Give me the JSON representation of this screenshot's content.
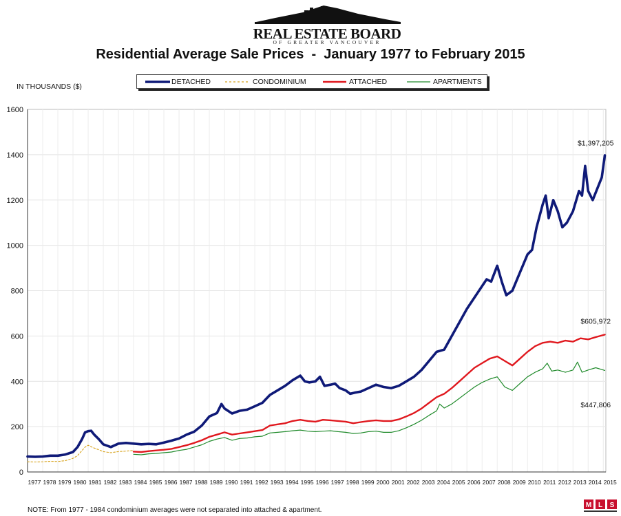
{
  "logo": {
    "main": "REAL ESTATE BOARD",
    "sub": "OF GREATER VANCOUVER"
  },
  "footnote": "NOTE:  From 1977 - 1984 condominium averages were not separated into attached & apartment.",
  "mls": {
    "glyphs": "MLS"
  },
  "chart_data": {
    "type": "line",
    "title": "Residential Average Sale Prices  -  January 1977 to February 2015",
    "ylabel": "IN THOUSANDS ($)",
    "xlabel": "",
    "ylim": [
      0,
      1600
    ],
    "yticks": [
      0,
      200,
      400,
      600,
      800,
      1000,
      1200,
      1400,
      1600
    ],
    "xlim": [
      1977,
      2015.17
    ],
    "xticks": [
      1977,
      1978,
      1979,
      1980,
      1981,
      1982,
      1983,
      1984,
      1985,
      1986,
      1987,
      1988,
      1989,
      1990,
      1991,
      1992,
      1993,
      1994,
      1995,
      1996,
      1997,
      1998,
      1999,
      2000,
      2001,
      2002,
      2003,
      2004,
      2005,
      2006,
      2007,
      2008,
      2009,
      2010,
      2011,
      2012,
      2013,
      2014,
      2015
    ],
    "grid": true,
    "legend_position": "top",
    "series": [
      {
        "name": "DETACHED",
        "color": "#0f1a78",
        "style": "thick",
        "points": [
          [
            1977.0,
            68
          ],
          [
            1977.5,
            67
          ],
          [
            1978.0,
            68
          ],
          [
            1978.5,
            72
          ],
          [
            1979.0,
            72
          ],
          [
            1979.5,
            77
          ],
          [
            1980.0,
            88
          ],
          [
            1980.3,
            110
          ],
          [
            1980.6,
            145
          ],
          [
            1980.8,
            175
          ],
          [
            1981.0,
            180
          ],
          [
            1981.2,
            182
          ],
          [
            1981.4,
            165
          ],
          [
            1981.7,
            145
          ],
          [
            1982.0,
            122
          ],
          [
            1982.5,
            110
          ],
          [
            1983.0,
            125
          ],
          [
            1983.5,
            128
          ],
          [
            1984.0,
            125
          ],
          [
            1984.5,
            122
          ],
          [
            1985.0,
            124
          ],
          [
            1985.5,
            122
          ],
          [
            1986.0,
            130
          ],
          [
            1986.5,
            138
          ],
          [
            1987.0,
            148
          ],
          [
            1987.5,
            165
          ],
          [
            1988.0,
            178
          ],
          [
            1988.5,
            205
          ],
          [
            1989.0,
            245
          ],
          [
            1989.5,
            260
          ],
          [
            1989.8,
            300
          ],
          [
            1990.0,
            280
          ],
          [
            1990.5,
            258
          ],
          [
            1991.0,
            270
          ],
          [
            1991.5,
            275
          ],
          [
            1992.0,
            290
          ],
          [
            1992.5,
            305
          ],
          [
            1993.0,
            340
          ],
          [
            1993.5,
            360
          ],
          [
            1994.0,
            380
          ],
          [
            1994.5,
            405
          ],
          [
            1995.0,
            425
          ],
          [
            1995.3,
            400
          ],
          [
            1995.6,
            395
          ],
          [
            1996.0,
            400
          ],
          [
            1996.3,
            420
          ],
          [
            1996.6,
            380
          ],
          [
            1997.0,
            385
          ],
          [
            1997.3,
            390
          ],
          [
            1997.6,
            370
          ],
          [
            1998.0,
            360
          ],
          [
            1998.3,
            345
          ],
          [
            1998.6,
            350
          ],
          [
            1999.0,
            355
          ],
          [
            1999.5,
            370
          ],
          [
            2000.0,
            385
          ],
          [
            2000.5,
            375
          ],
          [
            2001.0,
            370
          ],
          [
            2001.5,
            380
          ],
          [
            2002.0,
            400
          ],
          [
            2002.5,
            420
          ],
          [
            2003.0,
            450
          ],
          [
            2003.5,
            490
          ],
          [
            2004.0,
            530
          ],
          [
            2004.5,
            540
          ],
          [
            2005.0,
            600
          ],
          [
            2005.5,
            660
          ],
          [
            2006.0,
            720
          ],
          [
            2006.5,
            770
          ],
          [
            2007.0,
            820
          ],
          [
            2007.3,
            850
          ],
          [
            2007.6,
            840
          ],
          [
            2008.0,
            910
          ],
          [
            2008.3,
            840
          ],
          [
            2008.6,
            780
          ],
          [
            2009.0,
            800
          ],
          [
            2009.5,
            880
          ],
          [
            2010.0,
            960
          ],
          [
            2010.3,
            980
          ],
          [
            2010.6,
            1080
          ],
          [
            2011.0,
            1180
          ],
          [
            2011.2,
            1220
          ],
          [
            2011.4,
            1120
          ],
          [
            2011.7,
            1200
          ],
          [
            2012.0,
            1150
          ],
          [
            2012.3,
            1080
          ],
          [
            2012.6,
            1100
          ],
          [
            2013.0,
            1150
          ],
          [
            2013.4,
            1240
          ],
          [
            2013.6,
            1220
          ],
          [
            2013.8,
            1350
          ],
          [
            2014.0,
            1240
          ],
          [
            2014.3,
            1200
          ],
          [
            2014.6,
            1250
          ],
          [
            2014.9,
            1300
          ],
          [
            2015.1,
            1397
          ]
        ]
      },
      {
        "name": "CONDOMINIUM",
        "color": "#d7a21a",
        "style": "dashed",
        "points": [
          [
            1977.0,
            45
          ],
          [
            1977.5,
            44
          ],
          [
            1978.0,
            45
          ],
          [
            1978.5,
            47
          ],
          [
            1979.0,
            46
          ],
          [
            1979.5,
            50
          ],
          [
            1980.0,
            60
          ],
          [
            1980.3,
            72
          ],
          [
            1980.6,
            95
          ],
          [
            1980.8,
            110
          ],
          [
            1981.0,
            118
          ],
          [
            1981.3,
            108
          ],
          [
            1981.7,
            98
          ],
          [
            1982.0,
            90
          ],
          [
            1982.5,
            85
          ],
          [
            1983.0,
            90
          ],
          [
            1983.5,
            92
          ],
          [
            1984.0,
            95
          ]
        ]
      },
      {
        "name": "ATTACHED",
        "color": "#e0181e",
        "style": "medium",
        "points": [
          [
            1984.0,
            90
          ],
          [
            1984.5,
            88
          ],
          [
            1985.0,
            92
          ],
          [
            1985.5,
            95
          ],
          [
            1986.0,
            98
          ],
          [
            1986.5,
            102
          ],
          [
            1987.0,
            110
          ],
          [
            1987.5,
            118
          ],
          [
            1988.0,
            128
          ],
          [
            1988.5,
            140
          ],
          [
            1989.0,
            155
          ],
          [
            1989.5,
            165
          ],
          [
            1990.0,
            175
          ],
          [
            1990.5,
            165
          ],
          [
            1991.0,
            170
          ],
          [
            1991.5,
            175
          ],
          [
            1992.0,
            180
          ],
          [
            1992.5,
            185
          ],
          [
            1993.0,
            205
          ],
          [
            1993.5,
            210
          ],
          [
            1994.0,
            215
          ],
          [
            1994.5,
            225
          ],
          [
            1995.0,
            230
          ],
          [
            1995.5,
            225
          ],
          [
            1996.0,
            222
          ],
          [
            1996.5,
            230
          ],
          [
            1997.0,
            228
          ],
          [
            1997.5,
            225
          ],
          [
            1998.0,
            222
          ],
          [
            1998.5,
            215
          ],
          [
            1999.0,
            220
          ],
          [
            1999.5,
            225
          ],
          [
            2000.0,
            228
          ],
          [
            2000.5,
            225
          ],
          [
            2001.0,
            225
          ],
          [
            2001.5,
            232
          ],
          [
            2002.0,
            245
          ],
          [
            2002.5,
            260
          ],
          [
            2003.0,
            280
          ],
          [
            2003.5,
            305
          ],
          [
            2004.0,
            330
          ],
          [
            2004.5,
            345
          ],
          [
            2005.0,
            370
          ],
          [
            2005.5,
            400
          ],
          [
            2006.0,
            430
          ],
          [
            2006.5,
            460
          ],
          [
            2007.0,
            480
          ],
          [
            2007.5,
            500
          ],
          [
            2008.0,
            510
          ],
          [
            2008.5,
            490
          ],
          [
            2009.0,
            470
          ],
          [
            2009.5,
            500
          ],
          [
            2010.0,
            530
          ],
          [
            2010.5,
            555
          ],
          [
            2011.0,
            570
          ],
          [
            2011.5,
            575
          ],
          [
            2012.0,
            570
          ],
          [
            2012.5,
            580
          ],
          [
            2013.0,
            575
          ],
          [
            2013.5,
            590
          ],
          [
            2014.0,
            585
          ],
          [
            2014.5,
            595
          ],
          [
            2015.1,
            606
          ]
        ]
      },
      {
        "name": "APARTMENTS",
        "color": "#1f8a2a",
        "style": "thin",
        "points": [
          [
            1984.0,
            78
          ],
          [
            1984.5,
            76
          ],
          [
            1985.0,
            80
          ],
          [
            1985.5,
            82
          ],
          [
            1986.0,
            85
          ],
          [
            1986.5,
            88
          ],
          [
            1987.0,
            95
          ],
          [
            1987.5,
            100
          ],
          [
            1988.0,
            110
          ],
          [
            1988.5,
            120
          ],
          [
            1989.0,
            135
          ],
          [
            1989.5,
            145
          ],
          [
            1990.0,
            152
          ],
          [
            1990.5,
            140
          ],
          [
            1991.0,
            148
          ],
          [
            1991.5,
            150
          ],
          [
            1992.0,
            155
          ],
          [
            1992.5,
            158
          ],
          [
            1993.0,
            172
          ],
          [
            1993.5,
            175
          ],
          [
            1994.0,
            178
          ],
          [
            1994.5,
            182
          ],
          [
            1995.0,
            185
          ],
          [
            1995.5,
            180
          ],
          [
            1996.0,
            178
          ],
          [
            1996.5,
            180
          ],
          [
            1997.0,
            182
          ],
          [
            1997.5,
            178
          ],
          [
            1998.0,
            175
          ],
          [
            1998.5,
            170
          ],
          [
            1999.0,
            172
          ],
          [
            1999.5,
            178
          ],
          [
            2000.0,
            180
          ],
          [
            2000.5,
            175
          ],
          [
            2001.0,
            175
          ],
          [
            2001.5,
            182
          ],
          [
            2002.0,
            195
          ],
          [
            2002.5,
            210
          ],
          [
            2003.0,
            228
          ],
          [
            2003.5,
            250
          ],
          [
            2004.0,
            270
          ],
          [
            2004.2,
            300
          ],
          [
            2004.5,
            282
          ],
          [
            2005.0,
            300
          ],
          [
            2005.5,
            325
          ],
          [
            2006.0,
            350
          ],
          [
            2006.5,
            375
          ],
          [
            2007.0,
            395
          ],
          [
            2007.5,
            410
          ],
          [
            2008.0,
            420
          ],
          [
            2008.5,
            375
          ],
          [
            2009.0,
            360
          ],
          [
            2009.5,
            390
          ],
          [
            2010.0,
            420
          ],
          [
            2010.5,
            440
          ],
          [
            2011.0,
            455
          ],
          [
            2011.3,
            480
          ],
          [
            2011.6,
            445
          ],
          [
            2012.0,
            450
          ],
          [
            2012.5,
            440
          ],
          [
            2013.0,
            450
          ],
          [
            2013.3,
            485
          ],
          [
            2013.6,
            440
          ],
          [
            2014.0,
            450
          ],
          [
            2014.5,
            460
          ],
          [
            2015.1,
            448
          ]
        ]
      }
    ],
    "annotations": [
      {
        "text": "$1,397,205",
        "x": 2014.5,
        "y": 1440
      },
      {
        "text": "$605,972",
        "x": 2014.5,
        "y": 655
      },
      {
        "text": "$447,806",
        "x": 2014.5,
        "y": 285
      }
    ]
  }
}
